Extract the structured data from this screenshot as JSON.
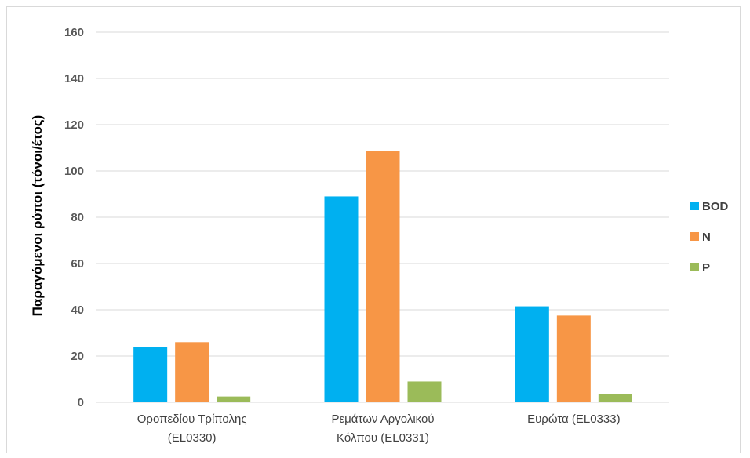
{
  "chart_data": {
    "type": "bar",
    "title": "",
    "xlabel": "",
    "ylabel": "Παραγόμενοι ρύποι (τόνοι/έτος)",
    "ylim": [
      0,
      160
    ],
    "yticks": [
      0,
      20,
      40,
      60,
      80,
      100,
      120,
      140,
      160
    ],
    "grid": true,
    "legend_position": "right",
    "categories": [
      [
        "Οροπεδίου Τρίπολης",
        "(EL0330)"
      ],
      [
        "Ρεμάτων Αργολικού",
        "Κόλπου (EL0331)"
      ],
      [
        "Ευρώτα (EL0333)"
      ]
    ],
    "series": [
      {
        "name": "BOD",
        "color": "#00b0f0",
        "values": [
          24,
          89,
          41.5
        ]
      },
      {
        "name": "N",
        "color": "#f79646",
        "values": [
          26,
          108.5,
          37.5
        ]
      },
      {
        "name": "P",
        "color": "#9bbb59",
        "values": [
          2.5,
          9,
          3.5
        ]
      }
    ]
  }
}
